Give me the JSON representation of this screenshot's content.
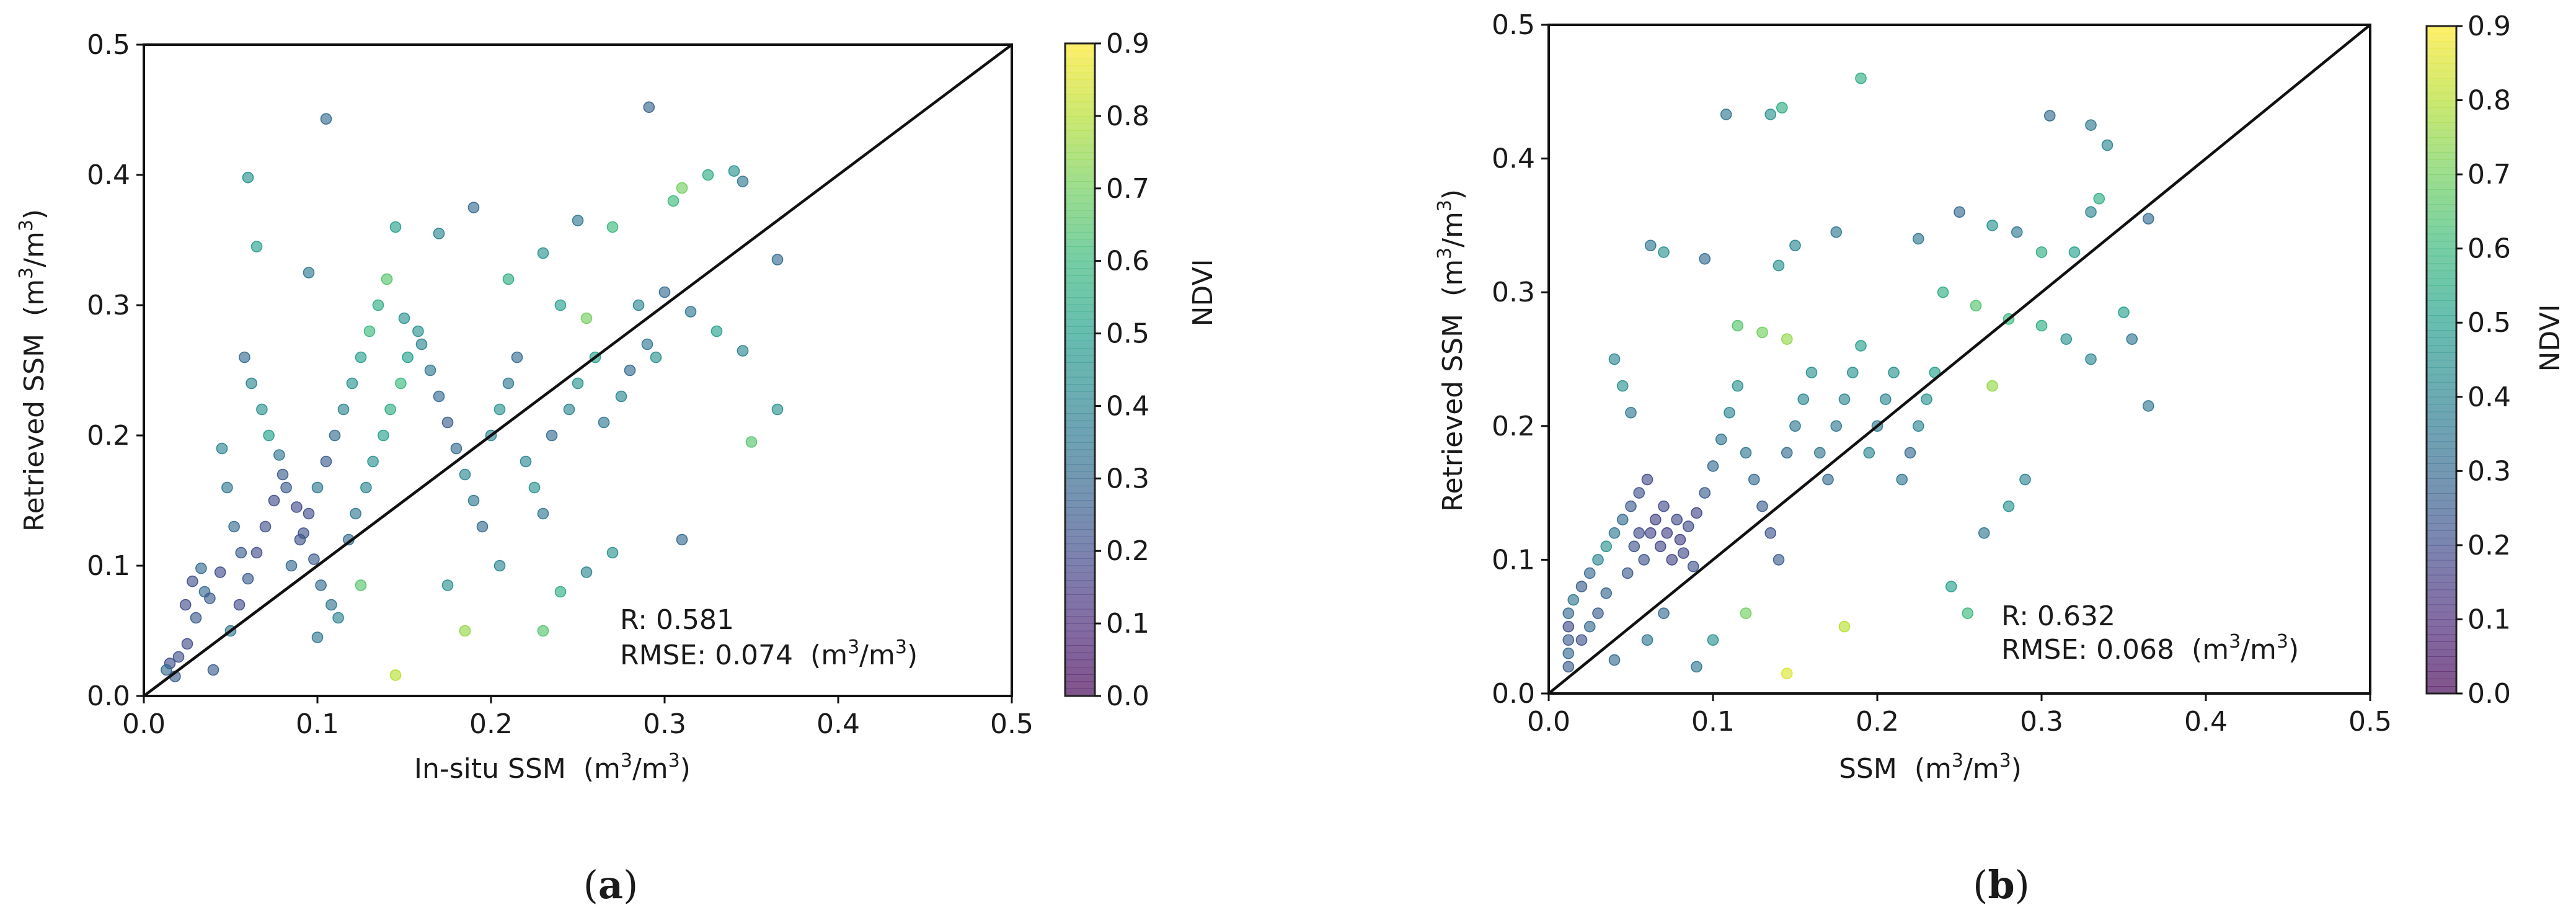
{
  "chart_data": [
    {
      "type": "scatter",
      "panel_label_open": "(",
      "panel_label_letter": "a",
      "panel_label_close": ")",
      "xlabel": "In-situ SSM",
      "ylabel": "Retrieved SSM",
      "unit_open": "(m",
      "unit_exp": "3",
      "unit_mid": "/m",
      "unit_close": ")",
      "xlim": [
        0,
        0.5
      ],
      "ylim": [
        0,
        0.5
      ],
      "xticks": [
        0.0,
        0.1,
        0.2,
        0.3,
        0.4,
        0.5
      ],
      "yticks": [
        0.0,
        0.1,
        0.2,
        0.3,
        0.4,
        0.5
      ],
      "xtick_labels": [
        "0.0",
        "0.1",
        "0.2",
        "0.3",
        "0.4",
        "0.5"
      ],
      "ytick_labels": [
        "0.0",
        "0.1",
        "0.2",
        "0.3",
        "0.4",
        "0.5"
      ],
      "identity_line": [
        [
          0,
          0
        ],
        [
          0.5,
          0.5
        ]
      ],
      "colorbar": {
        "label": "NDVI",
        "range": [
          0.0,
          0.9
        ],
        "ticks": [
          0.0,
          0.1,
          0.2,
          0.3,
          0.4,
          0.5,
          0.6,
          0.7,
          0.8,
          0.9
        ],
        "tick_labels": [
          "0.0",
          "0.1",
          "0.2",
          "0.3",
          "0.4",
          "0.5",
          "0.6",
          "0.7",
          "0.8",
          "0.9"
        ]
      },
      "stats": {
        "r_text": "R: 0.581",
        "rmse_prefix": "RMSE: 0.074",
        "rmse_unit_open": "(m",
        "rmse_unit_exp": "3",
        "rmse_unit_mid": "/m",
        "rmse_unit_close": ")"
      },
      "points": [
        [
          0.105,
          0.443,
          0.3
        ],
        [
          0.291,
          0.452,
          0.28
        ],
        [
          0.06,
          0.398,
          0.45
        ],
        [
          0.065,
          0.345,
          0.5
        ],
        [
          0.095,
          0.325,
          0.35
        ],
        [
          0.14,
          0.32,
          0.65
        ],
        [
          0.145,
          0.36,
          0.5
        ],
        [
          0.17,
          0.355,
          0.4
        ],
        [
          0.19,
          0.375,
          0.3
        ],
        [
          0.27,
          0.36,
          0.6
        ],
        [
          0.31,
          0.39,
          0.7
        ],
        [
          0.325,
          0.4,
          0.55
        ],
        [
          0.34,
          0.403,
          0.45
        ],
        [
          0.345,
          0.395,
          0.35
        ],
        [
          0.305,
          0.38,
          0.6
        ],
        [
          0.21,
          0.32,
          0.55
        ],
        [
          0.23,
          0.34,
          0.45
        ],
        [
          0.25,
          0.365,
          0.35
        ],
        [
          0.24,
          0.3,
          0.5
        ],
        [
          0.255,
          0.29,
          0.7
        ],
        [
          0.285,
          0.3,
          0.4
        ],
        [
          0.3,
          0.31,
          0.3
        ],
        [
          0.295,
          0.26,
          0.45
        ],
        [
          0.315,
          0.295,
          0.35
        ],
        [
          0.33,
          0.28,
          0.5
        ],
        [
          0.345,
          0.265,
          0.4
        ],
        [
          0.365,
          0.335,
          0.3
        ],
        [
          0.35,
          0.195,
          0.65
        ],
        [
          0.365,
          0.22,
          0.45
        ],
        [
          0.31,
          0.12,
          0.3
        ],
        [
          0.27,
          0.11,
          0.45
        ],
        [
          0.255,
          0.095,
          0.4
        ],
        [
          0.24,
          0.08,
          0.55
        ],
        [
          0.23,
          0.05,
          0.65
        ],
        [
          0.185,
          0.05,
          0.75
        ],
        [
          0.145,
          0.016,
          0.8
        ],
        [
          0.1,
          0.045,
          0.35
        ],
        [
          0.125,
          0.085,
          0.65
        ],
        [
          0.175,
          0.085,
          0.45
        ],
        [
          0.205,
          0.1,
          0.4
        ],
        [
          0.015,
          0.025,
          0.2
        ],
        [
          0.018,
          0.015,
          0.25
        ],
        [
          0.02,
          0.03,
          0.22
        ],
        [
          0.013,
          0.02,
          0.3
        ],
        [
          0.025,
          0.04,
          0.2
        ],
        [
          0.03,
          0.06,
          0.25
        ],
        [
          0.035,
          0.08,
          0.3
        ],
        [
          0.04,
          0.02,
          0.25
        ],
        [
          0.05,
          0.05,
          0.35
        ],
        [
          0.055,
          0.07,
          0.2
        ],
        [
          0.06,
          0.09,
          0.25
        ],
        [
          0.065,
          0.11,
          0.2
        ],
        [
          0.07,
          0.13,
          0.22
        ],
        [
          0.075,
          0.15,
          0.2
        ],
        [
          0.08,
          0.17,
          0.25
        ],
        [
          0.085,
          0.1,
          0.3
        ],
        [
          0.09,
          0.12,
          0.22
        ],
        [
          0.095,
          0.14,
          0.2
        ],
        [
          0.1,
          0.16,
          0.35
        ],
        [
          0.105,
          0.18,
          0.25
        ],
        [
          0.11,
          0.2,
          0.3
        ],
        [
          0.115,
          0.22,
          0.4
        ],
        [
          0.12,
          0.24,
          0.45
        ],
        [
          0.125,
          0.26,
          0.5
        ],
        [
          0.13,
          0.28,
          0.6
        ],
        [
          0.135,
          0.3,
          0.55
        ],
        [
          0.15,
          0.29,
          0.45
        ],
        [
          0.16,
          0.27,
          0.4
        ],
        [
          0.165,
          0.25,
          0.35
        ],
        [
          0.17,
          0.23,
          0.3
        ],
        [
          0.175,
          0.21,
          0.25
        ],
        [
          0.18,
          0.19,
          0.3
        ],
        [
          0.185,
          0.17,
          0.4
        ],
        [
          0.19,
          0.15,
          0.35
        ],
        [
          0.195,
          0.13,
          0.3
        ],
        [
          0.2,
          0.2,
          0.4
        ],
        [
          0.205,
          0.22,
          0.45
        ],
        [
          0.21,
          0.24,
          0.35
        ],
        [
          0.215,
          0.26,
          0.3
        ],
        [
          0.22,
          0.18,
          0.4
        ],
        [
          0.225,
          0.16,
          0.45
        ],
        [
          0.23,
          0.14,
          0.35
        ],
        [
          0.235,
          0.2,
          0.3
        ],
        [
          0.245,
          0.22,
          0.4
        ],
        [
          0.25,
          0.24,
          0.45
        ],
        [
          0.26,
          0.26,
          0.5
        ],
        [
          0.265,
          0.21,
          0.35
        ],
        [
          0.275,
          0.23,
          0.4
        ],
        [
          0.28,
          0.25,
          0.3
        ],
        [
          0.29,
          0.27,
          0.35
        ],
        [
          0.058,
          0.26,
          0.3
        ],
        [
          0.062,
          0.24,
          0.4
        ],
        [
          0.068,
          0.22,
          0.45
        ],
        [
          0.072,
          0.2,
          0.5
        ],
        [
          0.078,
          0.185,
          0.35
        ],
        [
          0.082,
          0.16,
          0.25
        ],
        [
          0.088,
          0.145,
          0.2
        ],
        [
          0.092,
          0.125,
          0.22
        ],
        [
          0.098,
          0.105,
          0.25
        ],
        [
          0.102,
          0.085,
          0.3
        ],
        [
          0.108,
          0.07,
          0.35
        ],
        [
          0.112,
          0.06,
          0.4
        ],
        [
          0.118,
          0.12,
          0.3
        ],
        [
          0.122,
          0.14,
          0.35
        ],
        [
          0.128,
          0.16,
          0.4
        ],
        [
          0.132,
          0.18,
          0.45
        ],
        [
          0.138,
          0.2,
          0.5
        ],
        [
          0.142,
          0.22,
          0.55
        ],
        [
          0.148,
          0.24,
          0.6
        ],
        [
          0.152,
          0.26,
          0.5
        ],
        [
          0.158,
          0.28,
          0.45
        ],
        [
          0.045,
          0.19,
          0.4
        ],
        [
          0.048,
          0.16,
          0.35
        ],
        [
          0.052,
          0.13,
          0.3
        ],
        [
          0.056,
          0.11,
          0.25
        ],
        [
          0.044,
          0.095,
          0.2
        ],
        [
          0.038,
          0.075,
          0.25
        ],
        [
          0.033,
          0.098,
          0.3
        ],
        [
          0.028,
          0.088,
          0.22
        ],
        [
          0.024,
          0.07,
          0.2
        ]
      ]
    },
    {
      "type": "scatter",
      "panel_label_open": "(",
      "panel_label_letter": "b",
      "panel_label_close": ")",
      "xlabel": "SSM",
      "ylabel": "Retrieved SSM",
      "unit_open": "(m",
      "unit_exp": "3",
      "unit_mid": "/m",
      "unit_close": ")",
      "xlim": [
        0,
        0.5
      ],
      "ylim": [
        0,
        0.5
      ],
      "xticks": [
        0.0,
        0.1,
        0.2,
        0.3,
        0.4,
        0.5
      ],
      "yticks": [
        0.0,
        0.1,
        0.2,
        0.3,
        0.4,
        0.5
      ],
      "xtick_labels": [
        "0.0",
        "0.1",
        "0.2",
        "0.3",
        "0.4",
        "0.5"
      ],
      "ytick_labels": [
        "0.0",
        "0.1",
        "0.2",
        "0.3",
        "0.4",
        "0.5"
      ],
      "identity_line": [
        [
          0,
          0
        ],
        [
          0.5,
          0.5
        ]
      ],
      "colorbar": {
        "label": "NDVI",
        "range": [
          0.0,
          0.9
        ],
        "ticks": [
          0.0,
          0.1,
          0.2,
          0.3,
          0.4,
          0.5,
          0.6,
          0.7,
          0.8,
          0.9
        ],
        "tick_labels": [
          "0.0",
          "0.1",
          "0.2",
          "0.3",
          "0.4",
          "0.5",
          "0.6",
          "0.7",
          "0.8",
          "0.9"
        ]
      },
      "stats": {
        "r_text": "R: 0.632",
        "rmse_prefix": "RMSE: 0.068",
        "rmse_unit_open": "(m",
        "rmse_unit_exp": "3",
        "rmse_unit_mid": "/m",
        "rmse_unit_close": ")"
      },
      "points": [
        [
          0.19,
          0.46,
          0.55
        ],
        [
          0.108,
          0.433,
          0.35
        ],
        [
          0.135,
          0.433,
          0.45
        ],
        [
          0.142,
          0.438,
          0.55
        ],
        [
          0.305,
          0.432,
          0.3
        ],
        [
          0.33,
          0.425,
          0.35
        ],
        [
          0.34,
          0.41,
          0.4
        ],
        [
          0.062,
          0.335,
          0.35
        ],
        [
          0.07,
          0.33,
          0.45
        ],
        [
          0.095,
          0.325,
          0.3
        ],
        [
          0.14,
          0.32,
          0.45
        ],
        [
          0.15,
          0.335,
          0.4
        ],
        [
          0.175,
          0.345,
          0.35
        ],
        [
          0.115,
          0.275,
          0.65
        ],
        [
          0.13,
          0.27,
          0.7
        ],
        [
          0.145,
          0.265,
          0.75
        ],
        [
          0.27,
          0.35,
          0.45
        ],
        [
          0.285,
          0.345,
          0.35
        ],
        [
          0.3,
          0.33,
          0.55
        ],
        [
          0.32,
          0.33,
          0.5
        ],
        [
          0.33,
          0.36,
          0.4
        ],
        [
          0.335,
          0.37,
          0.55
        ],
        [
          0.25,
          0.36,
          0.3
        ],
        [
          0.225,
          0.34,
          0.35
        ],
        [
          0.24,
          0.3,
          0.55
        ],
        [
          0.26,
          0.29,
          0.65
        ],
        [
          0.28,
          0.28,
          0.6
        ],
        [
          0.3,
          0.275,
          0.55
        ],
        [
          0.315,
          0.265,
          0.45
        ],
        [
          0.33,
          0.25,
          0.4
        ],
        [
          0.35,
          0.285,
          0.5
        ],
        [
          0.355,
          0.265,
          0.35
        ],
        [
          0.365,
          0.355,
          0.3
        ],
        [
          0.365,
          0.215,
          0.35
        ],
        [
          0.27,
          0.23,
          0.75
        ],
        [
          0.29,
          0.16,
          0.4
        ],
        [
          0.28,
          0.14,
          0.45
        ],
        [
          0.265,
          0.12,
          0.35
        ],
        [
          0.255,
          0.06,
          0.6
        ],
        [
          0.245,
          0.08,
          0.5
        ],
        [
          0.18,
          0.05,
          0.8
        ],
        [
          0.145,
          0.015,
          0.85
        ],
        [
          0.12,
          0.06,
          0.7
        ],
        [
          0.1,
          0.04,
          0.45
        ],
        [
          0.09,
          0.02,
          0.35
        ],
        [
          0.012,
          0.02,
          0.25
        ],
        [
          0.012,
          0.03,
          0.3
        ],
        [
          0.012,
          0.04,
          0.25
        ],
        [
          0.012,
          0.05,
          0.2
        ],
        [
          0.012,
          0.06,
          0.3
        ],
        [
          0.015,
          0.07,
          0.35
        ],
        [
          0.02,
          0.08,
          0.25
        ],
        [
          0.025,
          0.09,
          0.3
        ],
        [
          0.03,
          0.1,
          0.4
        ],
        [
          0.035,
          0.11,
          0.45
        ],
        [
          0.04,
          0.12,
          0.35
        ],
        [
          0.045,
          0.13,
          0.3
        ],
        [
          0.05,
          0.14,
          0.25
        ],
        [
          0.055,
          0.15,
          0.22
        ],
        [
          0.06,
          0.16,
          0.2
        ],
        [
          0.062,
          0.12,
          0.18
        ],
        [
          0.065,
          0.13,
          0.17
        ],
        [
          0.068,
          0.11,
          0.18
        ],
        [
          0.07,
          0.14,
          0.2
        ],
        [
          0.072,
          0.12,
          0.17
        ],
        [
          0.075,
          0.1,
          0.18
        ],
        [
          0.078,
          0.13,
          0.2
        ],
        [
          0.08,
          0.115,
          0.17
        ],
        [
          0.082,
          0.105,
          0.19
        ],
        [
          0.085,
          0.125,
          0.2
        ],
        [
          0.088,
          0.095,
          0.22
        ],
        [
          0.09,
          0.135,
          0.18
        ],
        [
          0.058,
          0.1,
          0.22
        ],
        [
          0.055,
          0.12,
          0.2
        ],
        [
          0.052,
          0.11,
          0.22
        ],
        [
          0.048,
          0.09,
          0.25
        ],
        [
          0.095,
          0.15,
          0.25
        ],
        [
          0.1,
          0.17,
          0.3
        ],
        [
          0.105,
          0.19,
          0.35
        ],
        [
          0.11,
          0.21,
          0.4
        ],
        [
          0.115,
          0.23,
          0.45
        ],
        [
          0.12,
          0.18,
          0.35
        ],
        [
          0.125,
          0.16,
          0.3
        ],
        [
          0.13,
          0.14,
          0.25
        ],
        [
          0.135,
          0.12,
          0.22
        ],
        [
          0.14,
          0.1,
          0.25
        ],
        [
          0.145,
          0.18,
          0.3
        ],
        [
          0.15,
          0.2,
          0.35
        ],
        [
          0.155,
          0.22,
          0.4
        ],
        [
          0.16,
          0.24,
          0.45
        ],
        [
          0.165,
          0.18,
          0.35
        ],
        [
          0.17,
          0.16,
          0.3
        ],
        [
          0.175,
          0.2,
          0.35
        ],
        [
          0.18,
          0.22,
          0.4
        ],
        [
          0.185,
          0.24,
          0.45
        ],
        [
          0.19,
          0.26,
          0.5
        ],
        [
          0.195,
          0.18,
          0.4
        ],
        [
          0.2,
          0.2,
          0.35
        ],
        [
          0.205,
          0.22,
          0.4
        ],
        [
          0.21,
          0.24,
          0.45
        ],
        [
          0.215,
          0.16,
          0.35
        ],
        [
          0.22,
          0.18,
          0.3
        ],
        [
          0.225,
          0.2,
          0.4
        ],
        [
          0.23,
          0.22,
          0.45
        ],
        [
          0.235,
          0.24,
          0.5
        ],
        [
          0.04,
          0.25,
          0.4
        ],
        [
          0.045,
          0.23,
          0.45
        ],
        [
          0.05,
          0.21,
          0.35
        ],
        [
          0.03,
          0.06,
          0.25
        ],
        [
          0.025,
          0.05,
          0.3
        ],
        [
          0.02,
          0.04,
          0.22
        ],
        [
          0.035,
          0.075,
          0.28
        ],
        [
          0.04,
          0.025,
          0.3
        ],
        [
          0.06,
          0.04,
          0.35
        ],
        [
          0.07,
          0.06,
          0.3
        ]
      ]
    }
  ]
}
